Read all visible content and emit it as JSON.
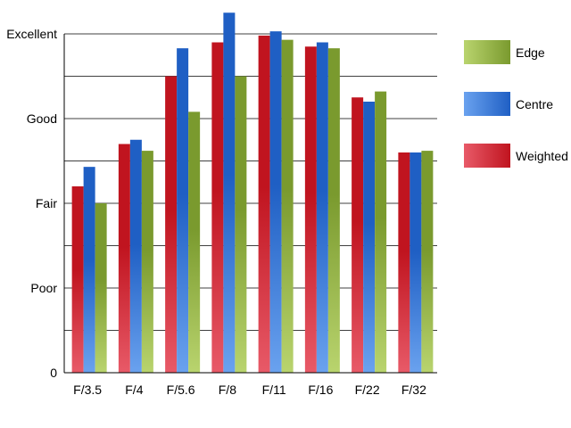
{
  "chart_data": {
    "type": "bar",
    "title": "",
    "xlabel": "",
    "ylabel": "",
    "categories": [
      "F/3.5",
      "F/4",
      "F/5.6",
      "F/8",
      "F/11",
      "F/16",
      "F/22",
      "F/32"
    ],
    "y_ticks": [
      {
        "value": 0,
        "label": "0"
      },
      {
        "value": 1,
        "label": "Poor"
      },
      {
        "value": 2,
        "label": "Fair"
      },
      {
        "value": 3,
        "label": "Good"
      },
      {
        "value": 4,
        "label": "Excellent"
      }
    ],
    "ylim": [
      0,
      4
    ],
    "grid": true,
    "legend_position": "right",
    "series": [
      {
        "name": "Weighted",
        "color": "#c0141f",
        "values": [
          2.2,
          2.7,
          3.5,
          3.9,
          3.98,
          3.85,
          3.25,
          2.6
        ]
      },
      {
        "name": "Centre",
        "color": "#1f5fc4",
        "values": [
          2.43,
          2.75,
          3.83,
          4.25,
          4.03,
          3.9,
          3.2,
          2.6
        ]
      },
      {
        "name": "Edge",
        "color": "#7a9a2e",
        "values": [
          2.0,
          2.62,
          3.08,
          3.5,
          3.93,
          3.83,
          3.32,
          2.62
        ]
      }
    ],
    "legend_order": [
      "Edge",
      "Centre",
      "Weighted"
    ]
  }
}
